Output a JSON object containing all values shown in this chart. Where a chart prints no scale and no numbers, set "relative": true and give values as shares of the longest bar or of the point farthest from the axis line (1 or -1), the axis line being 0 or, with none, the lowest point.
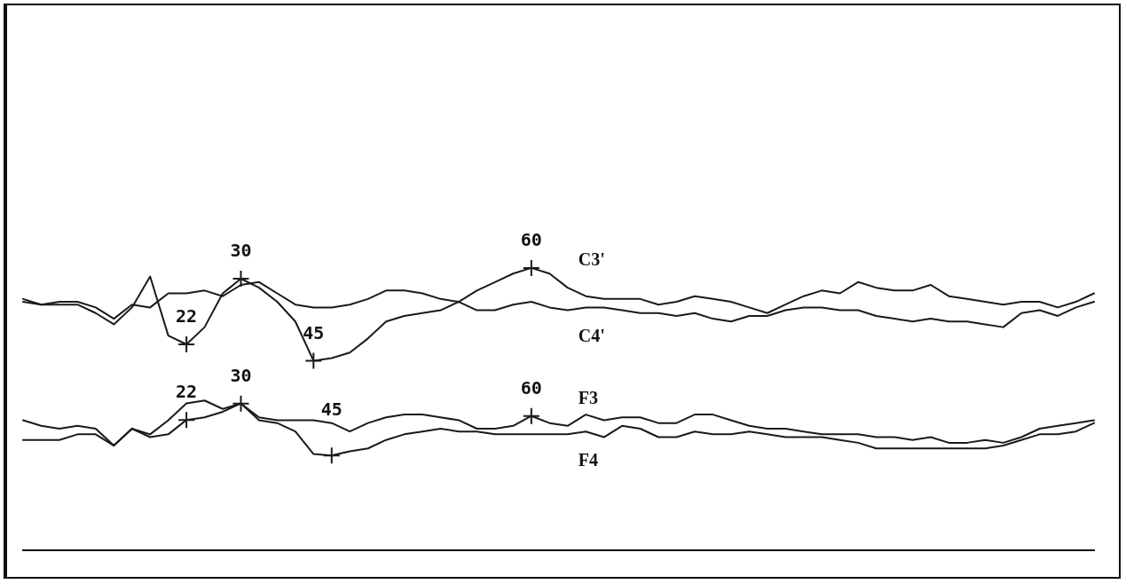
{
  "chart_data": {
    "type": "line",
    "relative": true,
    "marker": "none",
    "categories": [
      null,
      null,
      null,
      null,
      null,
      null,
      null,
      null,
      null,
      null,
      null,
      null,
      null,
      null,
      null,
      null,
      null,
      null,
      null,
      null,
      null,
      null,
      null,
      null,
      null,
      null,
      null,
      null,
      null,
      null,
      null,
      null,
      null,
      null,
      null,
      null,
      null,
      null,
      null,
      null,
      null,
      null,
      null,
      null,
      null,
      null,
      null,
      null,
      null,
      null,
      null,
      null,
      null,
      null,
      null,
      null,
      null,
      null,
      null,
      null
    ],
    "series": [
      {
        "name": "C3'",
        "color": "#1a1a1a",
        "values": [
          0.89,
          0.87,
          0.87,
          0.87,
          0.84,
          0.8,
          0.86,
          0.97,
          0.76,
          0.729,
          0.79,
          0.91,
          0.962,
          0.93,
          0.88,
          0.81,
          0.671,
          0.68,
          0.7,
          0.75,
          0.81,
          0.83,
          0.84,
          0.85,
          0.88,
          0.92,
          0.95,
          0.98,
          1.0,
          0.98,
          0.93,
          0.9,
          0.89,
          0.89,
          0.89,
          0.87,
          0.88,
          0.9,
          0.89,
          0.88,
          0.86,
          0.84,
          0.87,
          0.9,
          0.92,
          0.91,
          0.95,
          0.93,
          0.92,
          0.92,
          0.94,
          0.9,
          0.89,
          0.88,
          0.87,
          0.88,
          0.88,
          0.86,
          0.88,
          0.91
        ]
      },
      {
        "name": "C4'",
        "color": "#1a1a1a",
        "values": [
          0.88,
          0.87,
          0.88,
          0.88,
          0.86,
          0.82,
          0.87,
          0.86,
          0.91,
          0.91,
          0.92,
          0.9,
          0.94,
          0.95,
          0.91,
          0.87,
          0.86,
          0.86,
          0.87,
          0.89,
          0.92,
          0.92,
          0.91,
          0.89,
          0.88,
          0.85,
          0.85,
          0.87,
          0.88,
          0.86,
          0.85,
          0.86,
          0.86,
          0.85,
          0.84,
          0.84,
          0.83,
          0.84,
          0.82,
          0.81,
          0.83,
          0.83,
          0.85,
          0.86,
          0.86,
          0.85,
          0.85,
          0.83,
          0.82,
          0.81,
          0.82,
          0.81,
          0.81,
          0.8,
          0.79,
          0.84,
          0.85,
          0.83,
          0.86,
          0.88
        ]
      },
      {
        "name": "F3",
        "color": "#1a1a1a",
        "values": [
          0.46,
          0.44,
          0.43,
          0.44,
          0.43,
          0.37,
          0.43,
          0.41,
          0.46,
          0.52,
          0.53,
          0.5,
          0.519,
          0.47,
          0.46,
          0.46,
          0.46,
          0.45,
          0.42,
          0.45,
          0.47,
          0.48,
          0.48,
          0.47,
          0.46,
          0.43,
          0.43,
          0.44,
          0.475,
          0.45,
          0.44,
          0.48,
          0.46,
          0.47,
          0.47,
          0.45,
          0.45,
          0.48,
          0.48,
          0.46,
          0.44,
          0.43,
          0.43,
          0.42,
          0.41,
          0.41,
          0.41,
          0.4,
          0.4,
          0.39,
          0.4,
          0.38,
          0.38,
          0.39,
          0.38,
          0.4,
          0.43,
          0.44,
          0.45,
          0.46
        ]
      },
      {
        "name": "F4",
        "color": "#1a1a1a",
        "values": [
          0.39,
          0.39,
          0.39,
          0.41,
          0.41,
          0.37,
          0.43,
          0.4,
          0.41,
          0.461,
          0.47,
          0.49,
          0.52,
          0.46,
          0.45,
          0.42,
          0.34,
          0.335,
          0.35,
          0.36,
          0.39,
          0.41,
          0.42,
          0.43,
          0.42,
          0.42,
          0.41,
          0.41,
          0.41,
          0.41,
          0.41,
          0.42,
          0.4,
          0.44,
          0.43,
          0.4,
          0.4,
          0.42,
          0.41,
          0.41,
          0.42,
          0.41,
          0.4,
          0.4,
          0.4,
          0.39,
          0.38,
          0.36,
          0.36,
          0.36,
          0.36,
          0.36,
          0.36,
          0.36,
          0.37,
          0.39,
          0.41,
          0.41,
          0.42,
          0.45
        ]
      }
    ],
    "annotations": [
      {
        "text": "22",
        "y": 0.729
      },
      {
        "text": "30",
        "y": 0.962
      },
      {
        "text": "45",
        "y": 0.671
      },
      {
        "text": "60",
        "y": 1.0
      },
      {
        "text": "22",
        "y": 0.461
      },
      {
        "text": "30",
        "y": 0.519
      },
      {
        "text": "45",
        "y": 0.335
      },
      {
        "text": "60",
        "y": 0.475
      }
    ]
  }
}
